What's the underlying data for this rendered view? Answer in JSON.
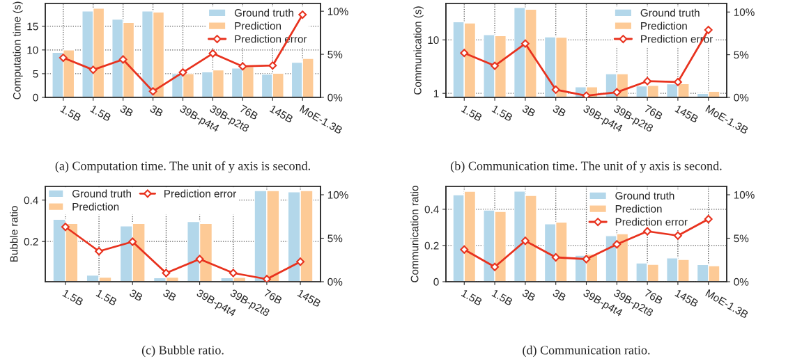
{
  "chart_data": [
    {
      "type": "bar",
      "ylabel": "Computation time (s)",
      "categories": [
        "1.5B",
        "1.5B",
        "3B",
        "3B",
        "39B-p4t4",
        "39B-p2t8",
        "76B",
        "145B",
        "MoE-1.3B"
      ],
      "ylim": [
        0,
        19.8
      ],
      "yticks": [
        0,
        5,
        10,
        15
      ],
      "y2lim": [
        0,
        10.9
      ],
      "y2ticks": [
        {
          "value": 0,
          "label": "0%"
        },
        {
          "value": 5,
          "label": "5%"
        },
        {
          "value": 10,
          "label": "10%"
        }
      ],
      "grid": true,
      "legend": "top right",
      "annotations": [
        "(a) Computation time. The unit of y axis is second."
      ],
      "series": [
        {
          "name": "Ground truth",
          "type": "bar",
          "color": "#b3d7ea",
          "values": [
            9.5,
            18.2,
            16.5,
            18.2,
            5.0,
            5.4,
            6.2,
            4.9,
            7.4
          ]
        },
        {
          "name": "Prediction",
          "type": "bar",
          "color": "#fdca96",
          "values": [
            10.0,
            18.8,
            15.8,
            18.0,
            5.0,
            5.8,
            6.5,
            5.1,
            8.2
          ]
        },
        {
          "name": "Prediction error",
          "type": "line",
          "axis": "y2",
          "color": "#e8321e",
          "marker": "diamond",
          "values": [
            4.6,
            3.2,
            4.4,
            0.7,
            2.9,
            5.1,
            3.6,
            3.7,
            9.6
          ]
        }
      ]
    },
    {
      "type": "bar",
      "ylabel": "Communication (s)",
      "log": true,
      "categories": [
        "1.5B",
        "1.5B",
        "3B",
        "3B",
        "39B-p4t4",
        "39B-p2t8",
        "76B",
        "145B",
        "MoE-1.3B"
      ],
      "ylim": [
        0.84,
        48
      ],
      "yticks": [
        1,
        10
      ],
      "y2lim": [
        0,
        11.0
      ],
      "y2ticks": [
        {
          "value": 0,
          "label": "0%"
        },
        {
          "value": 5,
          "label": "5%"
        },
        {
          "value": 10,
          "label": "10%"
        }
      ],
      "grid": true,
      "legend": "top right",
      "annotations": [
        "(b) Communication time. The unit of y axis is second."
      ],
      "series": [
        {
          "name": "Ground truth",
          "type": "bar",
          "color": "#b3d7ea",
          "values": [
            21.9,
            12.5,
            40.2,
            11.4,
            1.32,
            2.33,
            1.38,
            1.5,
            1.0
          ]
        },
        {
          "name": "Prediction",
          "type": "bar",
          "color": "#fdca96",
          "values": [
            20.7,
            12.0,
            37.3,
            11.2,
            1.32,
            2.33,
            1.41,
            1.52,
            1.09
          ]
        },
        {
          "name": "Prediction error",
          "type": "line",
          "axis": "y2",
          "color": "#e8321e",
          "marker": "diamond",
          "values": [
            5.2,
            3.7,
            6.3,
            0.9,
            0.2,
            0.6,
            1.9,
            1.8,
            7.9
          ]
        }
      ]
    },
    {
      "type": "bar",
      "ylabel": "Bubble ratio",
      "categories": [
        "1.5B",
        "1.5B",
        "3B",
        "3B",
        "39B-p4t4",
        "39B-p2t8",
        "76B",
        "145B"
      ],
      "ylim": [
        0.006,
        0.466
      ],
      "yticks": [
        0.2,
        0.4
      ],
      "y2lim": [
        0,
        10.96
      ],
      "y2ticks": [
        {
          "value": 0,
          "label": "0%"
        },
        {
          "value": 5,
          "label": "5%"
        },
        {
          "value": 10,
          "label": "10%"
        }
      ],
      "grid": true,
      "legend": "top",
      "annotations": [
        "(c) Bubble ratio."
      ],
      "series": [
        {
          "name": "Ground truth",
          "type": "bar",
          "color": "#b3d7ea",
          "values": [
            0.307,
            0.038,
            0.275,
            0.025,
            0.296,
            0.025,
            0.446,
            0.44
          ]
        },
        {
          "name": "Prediction",
          "type": "bar",
          "color": "#fdca96",
          "values": [
            0.287,
            0.028,
            0.287,
            0.028,
            0.287,
            0.027,
            0.446,
            0.446
          ]
        },
        {
          "name": "Prediction error",
          "type": "line",
          "axis": "y2",
          "color": "#e8321e",
          "marker": "diamond",
          "values": [
            6.3,
            3.5,
            4.6,
            1.0,
            2.6,
            1.0,
            0.3,
            2.3
          ]
        }
      ]
    },
    {
      "type": "bar",
      "ylabel": "Communication ratio",
      "categories": [
        "1.5B",
        "1.5B",
        "3B",
        "3B",
        "39B-p4t4",
        "39B-p2t8",
        "76B",
        "145B",
        "MoE-1.3B"
      ],
      "ylim": [
        0,
        0.526
      ],
      "yticks": [
        0,
        0.2,
        0.4
      ],
      "y2lim": [
        0,
        10.96
      ],
      "y2ticks": [
        {
          "value": 0,
          "label": "0%"
        },
        {
          "value": 5,
          "label": "5%"
        },
        {
          "value": 10,
          "label": "10%"
        }
      ],
      "grid": true,
      "legend": "top right",
      "annotations": [
        "(d) Communication ratio."
      ],
      "series": [
        {
          "name": "Ground truth",
          "type": "bar",
          "color": "#b3d7ea",
          "values": [
            0.48,
            0.395,
            0.5,
            0.319,
            0.146,
            0.254,
            0.103,
            0.131,
            0.095
          ]
        },
        {
          "name": "Prediction",
          "type": "bar",
          "color": "#fdca96",
          "values": [
            0.499,
            0.388,
            0.476,
            0.329,
            0.151,
            0.265,
            0.096,
            0.123,
            0.088
          ]
        },
        {
          "name": "Prediction error",
          "type": "line",
          "axis": "y2",
          "color": "#e8321e",
          "marker": "diamond",
          "values": [
            3.7,
            1.7,
            4.7,
            2.8,
            2.6,
            4.3,
            5.8,
            5.3,
            7.2
          ]
        }
      ]
    }
  ]
}
